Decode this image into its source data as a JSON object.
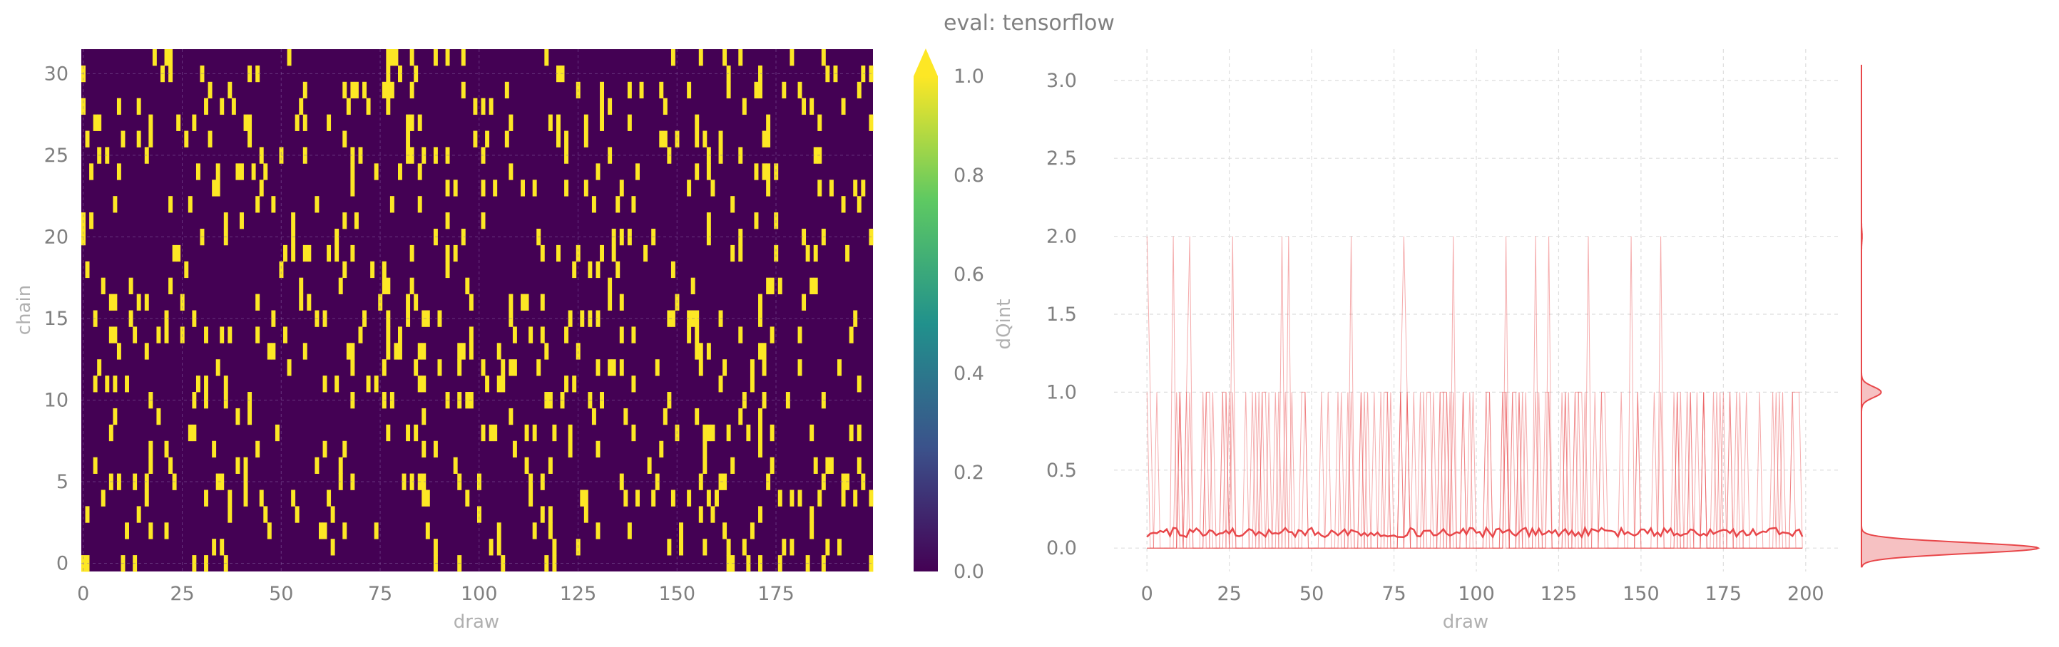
{
  "title": "eval: tensorflow",
  "colors": {
    "text": "#808080",
    "label": "#b0b0b0",
    "grid": "#dddddd",
    "series": "#e8474a",
    "series_fill": "#f6c1c2",
    "viridis": [
      "#440154",
      "#3b528b",
      "#21918c",
      "#5ec962",
      "#fde725"
    ]
  },
  "chart_data": [
    {
      "type": "heatmap",
      "xlabel": "draw",
      "ylabel": "chain",
      "x_ticks": [
        0,
        25,
        50,
        75,
        100,
        125,
        150,
        175
      ],
      "y_ticks": [
        0,
        5,
        10,
        15,
        20,
        25,
        30
      ],
      "xlim": [
        0,
        200
      ],
      "ylim": [
        0,
        32
      ],
      "n_draws": 200,
      "n_chains": 32,
      "value_range": [
        0.0,
        1.0
      ],
      "fraction_ones": 0.1,
      "grid": true,
      "colorbar": {
        "label": "dQint",
        "ticks": [
          "0.0",
          "0.2",
          "0.4",
          "0.6",
          "0.8",
          "1.0"
        ],
        "extend": "max"
      }
    },
    {
      "type": "line",
      "xlabel": "draw",
      "ylabel": "dQint",
      "x_ticks": [
        0,
        25,
        50,
        75,
        100,
        125,
        150,
        175,
        200
      ],
      "y_ticks": [
        "0.0",
        "0.5",
        "1.0",
        "1.5",
        "2.0",
        "2.5",
        "3.0"
      ],
      "xlim": [
        -10,
        210
      ],
      "ylim": [
        -0.15,
        3.2
      ],
      "grid": true,
      "trace_values": [
        0,
        1,
        2
      ],
      "spike_draws_value_2": [
        0,
        8,
        13,
        26,
        41,
        43,
        62,
        78,
        93,
        109,
        118,
        122,
        134,
        147,
        156
      ],
      "mean_line_level": 0.1,
      "marginal_density": {
        "peaks": [
          {
            "at": 0.0,
            "density": 0.9
          },
          {
            "at": 1.0,
            "density": 0.1
          },
          {
            "at": 2.0,
            "density": 0.003
          }
        ],
        "ymax": 3.1
      }
    }
  ]
}
